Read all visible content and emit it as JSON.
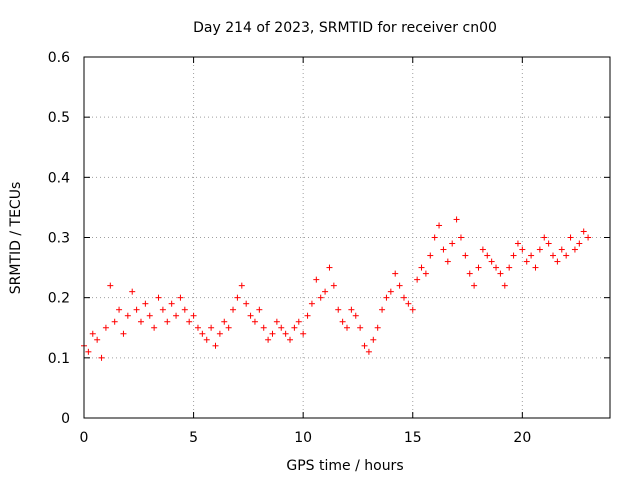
{
  "chart_data": {
    "type": "scatter",
    "title": "Day 214 of 2023, SRMTID for receiver cn00",
    "xlabel": "GPS time / hours",
    "ylabel": "SRMTID / TECUs",
    "xlim": [
      0,
      24
    ],
    "ylim": [
      0,
      0.6
    ],
    "xticks": [
      0,
      5,
      10,
      15,
      20
    ],
    "xtick_labels": [
      "0",
      "5",
      "10",
      "15",
      "20"
    ],
    "yticks": [
      0,
      0.1,
      0.2,
      0.3,
      0.4,
      0.5,
      0.6
    ],
    "ytick_labels": [
      "0",
      "0.1",
      "0.2",
      "0.3",
      "0.4",
      "0.5",
      "0.6"
    ],
    "grid": true,
    "marker": "+",
    "color": "#ff0000",
    "series": [
      {
        "name": "SRMTID",
        "x": [
          0.0,
          0.2,
          0.4,
          0.6,
          0.8,
          1.0,
          1.2,
          1.4,
          1.6,
          1.8,
          2.0,
          2.2,
          2.4,
          2.6,
          2.8,
          3.0,
          3.2,
          3.4,
          3.6,
          3.8,
          4.0,
          4.2,
          4.4,
          4.6,
          4.8,
          5.0,
          5.2,
          5.4,
          5.6,
          5.8,
          6.0,
          6.2,
          6.4,
          6.6,
          6.8,
          7.0,
          7.2,
          7.4,
          7.6,
          7.8,
          8.0,
          8.2,
          8.4,
          8.6,
          8.8,
          9.0,
          9.2,
          9.4,
          9.6,
          9.8,
          10.0,
          10.2,
          10.4,
          10.6,
          10.8,
          11.0,
          11.2,
          11.4,
          11.6,
          11.8,
          12.0,
          12.2,
          12.4,
          12.6,
          12.8,
          13.0,
          13.2,
          13.4,
          13.6,
          13.8,
          14.0,
          14.2,
          14.4,
          14.6,
          14.8,
          15.0,
          15.2,
          15.4,
          15.6,
          15.8,
          16.0,
          16.2,
          16.4,
          16.6,
          16.8,
          17.0,
          17.2,
          17.4,
          17.6,
          17.8,
          18.0,
          18.2,
          18.4,
          18.6,
          18.8,
          19.0,
          19.2,
          19.4,
          19.6,
          19.8,
          20.0,
          20.2,
          20.4,
          20.6,
          20.8,
          21.0,
          21.2,
          21.4,
          21.6,
          21.8,
          22.0,
          22.2,
          22.4,
          22.6,
          22.8,
          23.0
        ],
        "y": [
          0.12,
          0.11,
          0.14,
          0.13,
          0.1,
          0.15,
          0.22,
          0.16,
          0.18,
          0.14,
          0.17,
          0.21,
          0.18,
          0.16,
          0.19,
          0.17,
          0.15,
          0.2,
          0.18,
          0.16,
          0.19,
          0.17,
          0.2,
          0.18,
          0.16,
          0.17,
          0.15,
          0.14,
          0.13,
          0.15,
          0.12,
          0.14,
          0.16,
          0.15,
          0.18,
          0.2,
          0.22,
          0.19,
          0.17,
          0.16,
          0.18,
          0.15,
          0.13,
          0.14,
          0.16,
          0.15,
          0.14,
          0.13,
          0.15,
          0.16,
          0.14,
          0.17,
          0.19,
          0.23,
          0.2,
          0.21,
          0.25,
          0.22,
          0.18,
          0.16,
          0.15,
          0.18,
          0.17,
          0.15,
          0.12,
          0.11,
          0.13,
          0.15,
          0.18,
          0.2,
          0.21,
          0.24,
          0.22,
          0.2,
          0.19,
          0.18,
          0.23,
          0.25,
          0.24,
          0.27,
          0.3,
          0.32,
          0.28,
          0.26,
          0.29,
          0.33,
          0.3,
          0.27,
          0.24,
          0.22,
          0.25,
          0.28,
          0.27,
          0.26,
          0.25,
          0.24,
          0.22,
          0.25,
          0.27,
          0.29,
          0.28,
          0.26,
          0.27,
          0.25,
          0.28,
          0.3,
          0.29,
          0.27,
          0.26,
          0.28,
          0.27,
          0.3,
          0.28,
          0.29,
          0.31,
          0.3
        ]
      }
    ]
  }
}
